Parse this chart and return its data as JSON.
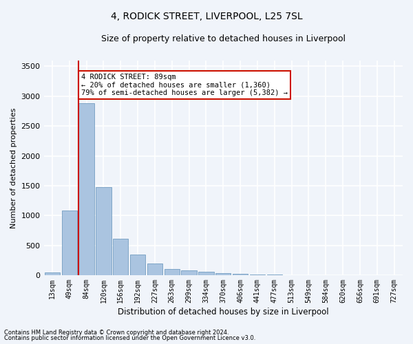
{
  "title1": "4, RODICK STREET, LIVERPOOL, L25 7SL",
  "title2": "Size of property relative to detached houses in Liverpool",
  "xlabel": "Distribution of detached houses by size in Liverpool",
  "ylabel": "Number of detached properties",
  "categories": [
    "13sqm",
    "49sqm",
    "84sqm",
    "120sqm",
    "156sqm",
    "192sqm",
    "227sqm",
    "263sqm",
    "299sqm",
    "334sqm",
    "370sqm",
    "406sqm",
    "441sqm",
    "477sqm",
    "513sqm",
    "549sqm",
    "584sqm",
    "620sqm",
    "656sqm",
    "691sqm",
    "727sqm"
  ],
  "values": [
    50,
    1080,
    2880,
    1470,
    615,
    340,
    200,
    105,
    75,
    55,
    35,
    20,
    12,
    8,
    5,
    3,
    2,
    2,
    1,
    1,
    0
  ],
  "bar_color": "#aac4e0",
  "bar_edge_color": "#6090b8",
  "highlight_color": "#cc1100",
  "annotation_text": "4 RODICK STREET: 89sqm\n← 20% of detached houses are smaller (1,360)\n79% of semi-detached houses are larger (5,382) →",
  "annotation_box_color": "#ffffff",
  "annotation_box_edge_color": "#cc1100",
  "vline_bar_index": 2,
  "ylim": [
    0,
    3600
  ],
  "yticks": [
    0,
    500,
    1000,
    1500,
    2000,
    2500,
    3000,
    3500
  ],
  "background_color": "#f0f4fa",
  "plot_background": "#f0f4fa",
  "grid_color": "#ffffff",
  "footnote1": "Contains HM Land Registry data © Crown copyright and database right 2024.",
  "footnote2": "Contains public sector information licensed under the Open Government Licence v3.0."
}
